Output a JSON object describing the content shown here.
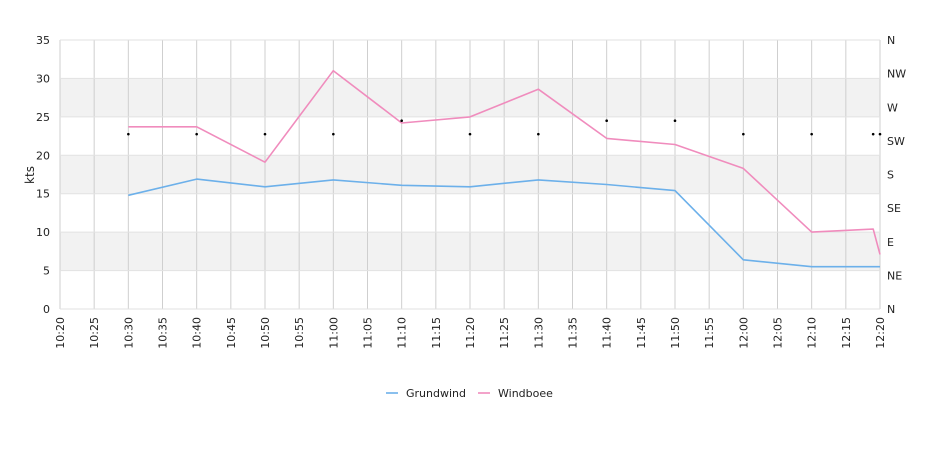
{
  "chart_data": {
    "type": "line",
    "ylabel": "kts",
    "ylim": [
      0,
      35
    ],
    "y_ticks": [
      0,
      5,
      10,
      15,
      20,
      25,
      30,
      35
    ],
    "x_ticks": [
      "10:20",
      "10:25",
      "10:30",
      "10:35",
      "10:40",
      "10:45",
      "10:50",
      "10:55",
      "11:00",
      "11:05",
      "11:10",
      "11:15",
      "11:20",
      "11:25",
      "11:30",
      "11:35",
      "11:40",
      "11:45",
      "11:50",
      "11:55",
      "12:00",
      "12:05",
      "12:10",
      "12:15",
      "12:20"
    ],
    "xlim": [
      "10:20",
      "12:20"
    ],
    "right_axis": {
      "labels": [
        "N",
        "NE",
        "E",
        "SE",
        "S",
        "SW",
        "W",
        "NW",
        "N"
      ],
      "range": [
        0,
        360
      ]
    },
    "grid": true,
    "band_colors": [
      "#ffffff",
      "#f2f2f2"
    ],
    "legend_position": "bottom",
    "series": [
      {
        "name": "Grundwind",
        "color": "#6cb0ea",
        "points": [
          [
            "10:30",
            14.8
          ],
          [
            "10:40",
            16.9
          ],
          [
            "10:50",
            15.9
          ],
          [
            "11:00",
            16.8
          ],
          [
            "11:10",
            16.1
          ],
          [
            "11:20",
            15.9
          ],
          [
            "11:30",
            16.8
          ],
          [
            "11:40",
            16.2
          ],
          [
            "11:50",
            15.4
          ],
          [
            "12:00",
            6.4
          ],
          [
            "12:10",
            5.5
          ],
          [
            "12:20",
            5.5
          ]
        ]
      },
      {
        "name": "Windboee",
        "color": "#f08cbd",
        "points": [
          [
            "10:30",
            23.7
          ],
          [
            "10:40",
            23.7
          ],
          [
            "10:50",
            19.1
          ],
          [
            "11:00",
            31.0
          ],
          [
            "11:10",
            24.2
          ],
          [
            "11:20",
            25.0
          ],
          [
            "11:30",
            28.6
          ],
          [
            "11:40",
            22.2
          ],
          [
            "11:50",
            21.4
          ],
          [
            "12:00",
            18.3
          ],
          [
            "12:10",
            10.0
          ],
          [
            "12:19",
            10.4
          ],
          [
            "12:20",
            7.1
          ]
        ]
      }
    ],
    "direction_points": [
      [
        "10:30",
        234
      ],
      [
        "10:40",
        234
      ],
      [
        "10:50",
        234
      ],
      [
        "11:00",
        234
      ],
      [
        "11:10",
        252
      ],
      [
        "11:20",
        234
      ],
      [
        "11:30",
        234
      ],
      [
        "11:40",
        252
      ],
      [
        "11:50",
        252
      ],
      [
        "12:00",
        234
      ],
      [
        "12:10",
        234
      ],
      [
        "12:19",
        234
      ],
      [
        "12:20",
        234
      ]
    ]
  }
}
